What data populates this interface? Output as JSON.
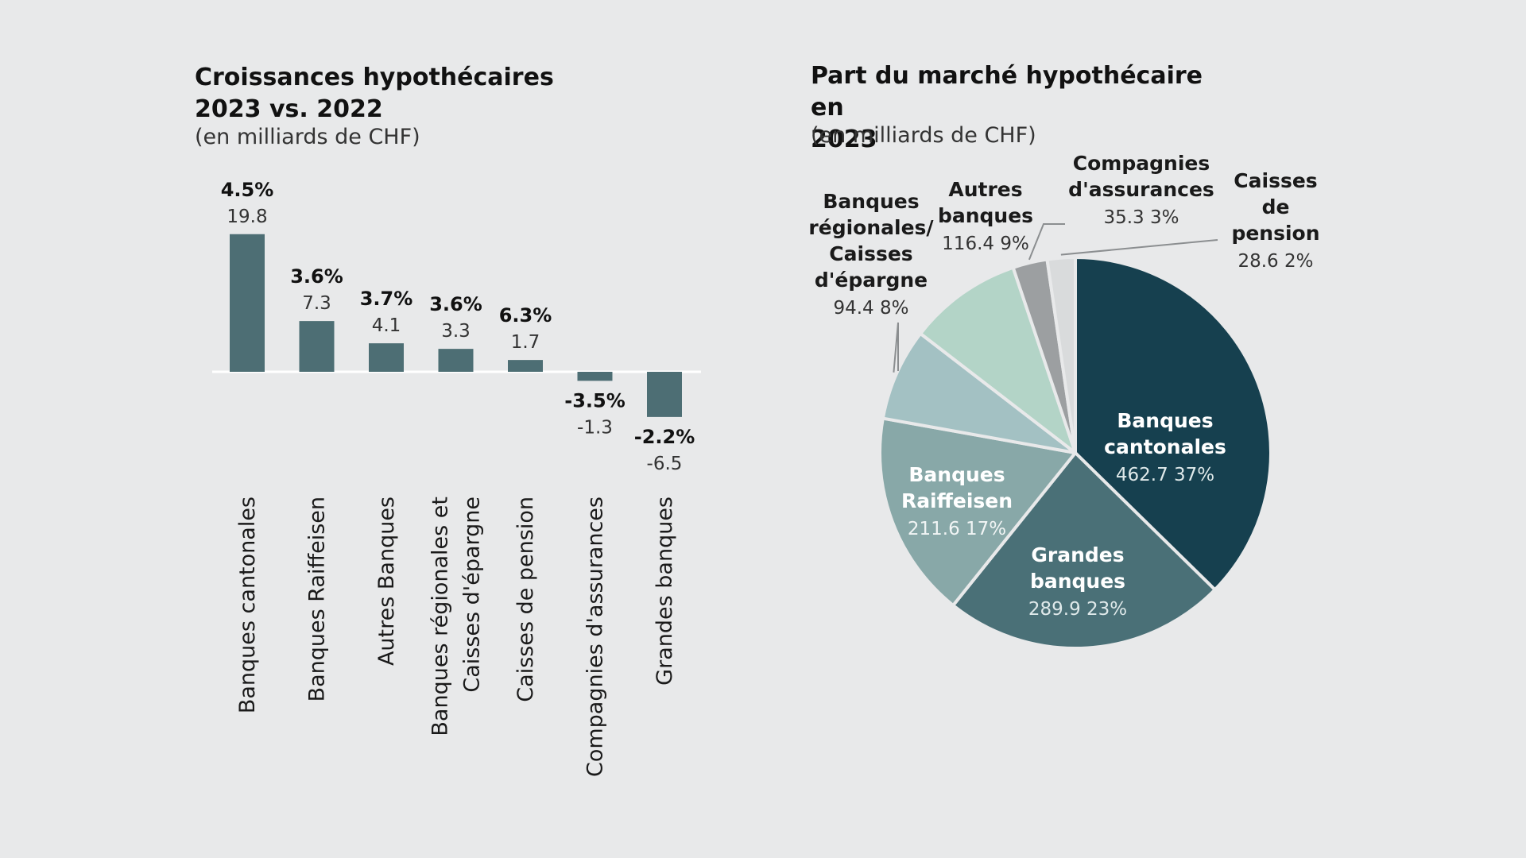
{
  "bar_chart": {
    "title_line1": "Croissances hypothécaires",
    "title_line2": "2023 vs. 2022",
    "subtitle": "(en milliards de CHF)"
  },
  "pie_chart": {
    "title_line1": "Part du marché hypothécaire en",
    "title_line2": "2023",
    "subtitle": "(en milliards de CHF)"
  },
  "chart_data": [
    {
      "type": "bar",
      "title": "Croissances hypothécaires 2023 vs. 2022",
      "subtitle": "(en milliards de CHF)",
      "categories": [
        [
          "Banques cantonales"
        ],
        [
          "Banques Raiffeisen"
        ],
        [
          "Autres Banques"
        ],
        [
          "Banques régionales et",
          "Caisses d'épargne"
        ],
        [
          "Caisses de pension"
        ],
        [
          "Compagnies d'assurances"
        ],
        [
          "Grandes banques"
        ]
      ],
      "values": [
        19.8,
        7.3,
        4.1,
        3.3,
        1.7,
        -1.3,
        -6.5
      ],
      "value_labels": [
        "19.8",
        "7.3",
        "4.1",
        "3.3",
        "1.7",
        "-1.3",
        "-6.5"
      ],
      "percent_labels": [
        "4.5%",
        "3.6%",
        "3.7%",
        "3.6%",
        "6.3%",
        "-3.5%",
        "-2.2%"
      ],
      "color": "#4d6e74"
    },
    {
      "type": "pie",
      "title": "Part du marché hypothécaire en 2023",
      "subtitle": "(en milliards de CHF)",
      "slices": [
        {
          "name": [
            "Banques",
            "cantonales"
          ],
          "value": 462.7,
          "value_label": "462.7",
          "percent_label": "37%",
          "color": "#16404f"
        },
        {
          "name": [
            "Grandes",
            "banques"
          ],
          "value": 289.9,
          "value_label": "289.9",
          "percent_label": "23%",
          "color": "#4a7077"
        },
        {
          "name": [
            "Banques",
            "Raiffeisen"
          ],
          "value": 211.6,
          "value_label": "211.6",
          "percent_label": "17%",
          "color": "#88a8a8"
        },
        {
          "name": [
            "Banques",
            "régionales/",
            "Caisses",
            "d'épargne"
          ],
          "value": 94.4,
          "value_label": "94.4",
          "percent_label": "8%",
          "color": "#a3c1c3"
        },
        {
          "name": [
            "Autres",
            "banques"
          ],
          "value": 116.4,
          "value_label": "116.4",
          "percent_label": "9%",
          "color": "#b3d4c7"
        },
        {
          "name": [
            "Compagnies",
            "d'assurances"
          ],
          "value": 35.3,
          "value_label": "35.3",
          "percent_label": "3%",
          "color": "#9c9fa1"
        },
        {
          "name": [
            "Caisses",
            "de",
            "pension"
          ],
          "value": 28.6,
          "value_label": "28.6",
          "percent_label": "2%",
          "color": "#d9dbdc"
        }
      ]
    }
  ]
}
